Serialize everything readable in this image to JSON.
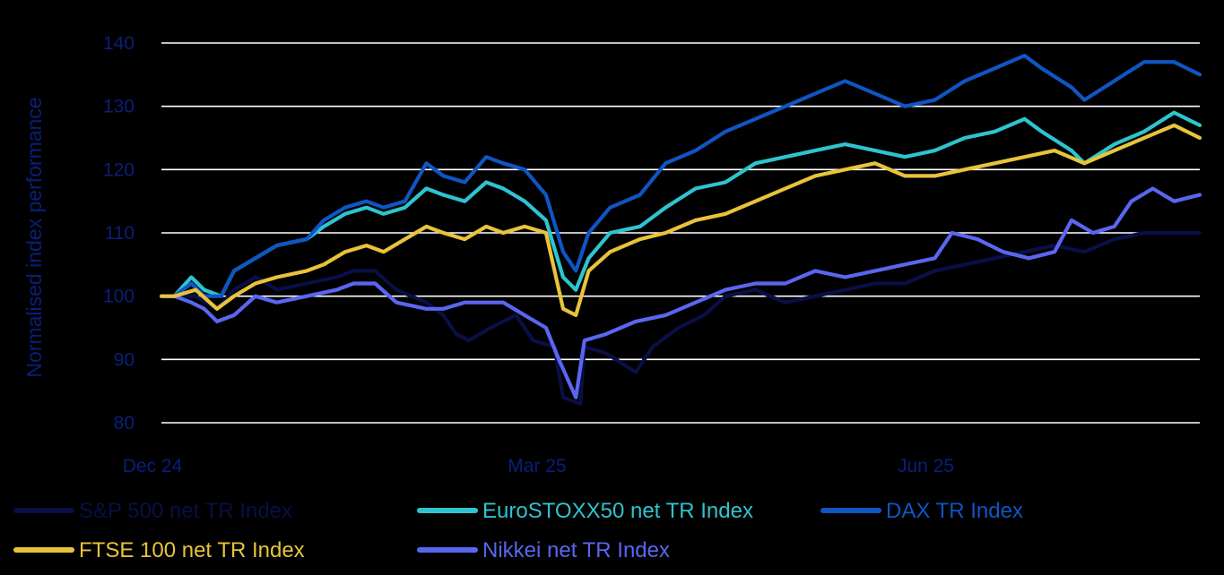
{
  "chart_data": {
    "type": "line",
    "ylabel": "Normalised index performance",
    "xlabel": "",
    "ylim": [
      80,
      140
    ],
    "yticks": [
      80,
      90,
      100,
      110,
      120,
      130,
      140
    ],
    "xlim": [
      "2024-12-31",
      "2025-08-31"
    ],
    "xticks": [
      {
        "date": "2024-12-31",
        "label": "Dec 24"
      },
      {
        "date": "2025-03-31",
        "label": "Mar 25"
      },
      {
        "date": "2025-06-30",
        "label": "Jun 25"
      }
    ],
    "grid": true,
    "legend_position": "bottom",
    "series": [
      {
        "name": "S&P 500 net TR Index",
        "color": "#0a0f45",
        "points": [
          [
            "2024-12-31",
            100
          ],
          [
            "2025-01-03",
            100
          ],
          [
            "2025-01-08",
            100
          ],
          [
            "2025-01-13",
            98
          ],
          [
            "2025-01-17",
            101
          ],
          [
            "2025-01-22",
            103
          ],
          [
            "2025-01-27",
            101
          ],
          [
            "2025-02-03",
            102
          ],
          [
            "2025-02-10",
            103
          ],
          [
            "2025-02-14",
            104
          ],
          [
            "2025-02-19",
            104
          ],
          [
            "2025-02-24",
            101
          ],
          [
            "2025-03-03",
            99
          ],
          [
            "2025-03-07",
            97
          ],
          [
            "2025-03-10",
            94
          ],
          [
            "2025-03-13",
            93
          ],
          [
            "2025-03-18",
            95
          ],
          [
            "2025-03-24",
            97
          ],
          [
            "2025-03-28",
            93
          ],
          [
            "2025-04-02",
            92
          ],
          [
            "2025-04-04",
            84
          ],
          [
            "2025-04-08",
            83
          ],
          [
            "2025-04-09",
            92
          ],
          [
            "2025-04-14",
            91
          ],
          [
            "2025-04-21",
            88
          ],
          [
            "2025-04-25",
            92
          ],
          [
            "2025-05-01",
            95
          ],
          [
            "2025-05-07",
            97
          ],
          [
            "2025-05-12",
            100
          ],
          [
            "2025-05-19",
            101
          ],
          [
            "2025-05-26",
            99
          ],
          [
            "2025-06-02",
            100
          ],
          [
            "2025-06-09",
            101
          ],
          [
            "2025-06-16",
            102
          ],
          [
            "2025-06-23",
            102
          ],
          [
            "2025-06-30",
            104
          ],
          [
            "2025-07-07",
            105
          ],
          [
            "2025-07-14",
            106
          ],
          [
            "2025-07-21",
            107
          ],
          [
            "2025-07-28",
            108
          ],
          [
            "2025-08-04",
            107
          ],
          [
            "2025-08-11",
            109
          ],
          [
            "2025-08-18",
            110
          ],
          [
            "2025-08-25",
            110
          ],
          [
            "2025-08-31",
            110
          ]
        ]
      },
      {
        "name": "EuroSTOXX50 net TR Index",
        "color": "#2ec4cf",
        "points": [
          [
            "2024-12-31",
            100
          ],
          [
            "2025-01-03",
            100
          ],
          [
            "2025-01-07",
            103
          ],
          [
            "2025-01-10",
            101
          ],
          [
            "2025-01-14",
            100
          ],
          [
            "2025-01-17",
            104
          ],
          [
            "2025-01-22",
            106
          ],
          [
            "2025-01-27",
            108
          ],
          [
            "2025-02-03",
            109
          ],
          [
            "2025-02-07",
            111
          ],
          [
            "2025-02-12",
            113
          ],
          [
            "2025-02-17",
            114
          ],
          [
            "2025-02-21",
            113
          ],
          [
            "2025-02-26",
            114
          ],
          [
            "2025-03-03",
            117
          ],
          [
            "2025-03-07",
            116
          ],
          [
            "2025-03-12",
            115
          ],
          [
            "2025-03-17",
            118
          ],
          [
            "2025-03-21",
            117
          ],
          [
            "2025-03-26",
            115
          ],
          [
            "2025-03-31",
            112
          ],
          [
            "2025-04-04",
            103
          ],
          [
            "2025-04-07",
            101
          ],
          [
            "2025-04-10",
            106
          ],
          [
            "2025-04-15",
            110
          ],
          [
            "2025-04-22",
            111
          ],
          [
            "2025-04-28",
            114
          ],
          [
            "2025-05-05",
            117
          ],
          [
            "2025-05-12",
            118
          ],
          [
            "2025-05-19",
            121
          ],
          [
            "2025-05-26",
            122
          ],
          [
            "2025-06-02",
            123
          ],
          [
            "2025-06-09",
            124
          ],
          [
            "2025-06-16",
            123
          ],
          [
            "2025-06-23",
            122
          ],
          [
            "2025-06-30",
            123
          ],
          [
            "2025-07-07",
            125
          ],
          [
            "2025-07-14",
            126
          ],
          [
            "2025-07-21",
            128
          ],
          [
            "2025-07-25",
            126
          ],
          [
            "2025-08-01",
            123
          ],
          [
            "2025-08-04",
            121
          ],
          [
            "2025-08-11",
            124
          ],
          [
            "2025-08-18",
            126
          ],
          [
            "2025-08-25",
            129
          ],
          [
            "2025-08-31",
            127
          ]
        ]
      },
      {
        "name": "DAX TR Index",
        "color": "#0f55c4",
        "points": [
          [
            "2024-12-31",
            100
          ],
          [
            "2025-01-03",
            100
          ],
          [
            "2025-01-07",
            102
          ],
          [
            "2025-01-10",
            100
          ],
          [
            "2025-01-14",
            100
          ],
          [
            "2025-01-17",
            104
          ],
          [
            "2025-01-22",
            106
          ],
          [
            "2025-01-27",
            108
          ],
          [
            "2025-02-03",
            109
          ],
          [
            "2025-02-07",
            112
          ],
          [
            "2025-02-12",
            114
          ],
          [
            "2025-02-17",
            115
          ],
          [
            "2025-02-21",
            114
          ],
          [
            "2025-02-26",
            115
          ],
          [
            "2025-03-03",
            121
          ],
          [
            "2025-03-07",
            119
          ],
          [
            "2025-03-12",
            118
          ],
          [
            "2025-03-17",
            122
          ],
          [
            "2025-03-21",
            121
          ],
          [
            "2025-03-26",
            120
          ],
          [
            "2025-03-31",
            116
          ],
          [
            "2025-04-04",
            107
          ],
          [
            "2025-04-07",
            104
          ],
          [
            "2025-04-10",
            110
          ],
          [
            "2025-04-15",
            114
          ],
          [
            "2025-04-22",
            116
          ],
          [
            "2025-04-28",
            121
          ],
          [
            "2025-05-05",
            123
          ],
          [
            "2025-05-12",
            126
          ],
          [
            "2025-05-19",
            128
          ],
          [
            "2025-05-26",
            130
          ],
          [
            "2025-06-02",
            132
          ],
          [
            "2025-06-09",
            134
          ],
          [
            "2025-06-16",
            132
          ],
          [
            "2025-06-23",
            130
          ],
          [
            "2025-06-30",
            131
          ],
          [
            "2025-07-07",
            134
          ],
          [
            "2025-07-14",
            136
          ],
          [
            "2025-07-21",
            138
          ],
          [
            "2025-07-25",
            136
          ],
          [
            "2025-08-01",
            133
          ],
          [
            "2025-08-04",
            131
          ],
          [
            "2025-08-11",
            134
          ],
          [
            "2025-08-18",
            137
          ],
          [
            "2025-08-25",
            137
          ],
          [
            "2025-08-31",
            135
          ]
        ]
      },
      {
        "name": "FTSE 100 net TR Index",
        "color": "#e8c33b",
        "points": [
          [
            "2024-12-31",
            100
          ],
          [
            "2025-01-03",
            100
          ],
          [
            "2025-01-08",
            101
          ],
          [
            "2025-01-13",
            98
          ],
          [
            "2025-01-17",
            100
          ],
          [
            "2025-01-22",
            102
          ],
          [
            "2025-01-27",
            103
          ],
          [
            "2025-02-03",
            104
          ],
          [
            "2025-02-07",
            105
          ],
          [
            "2025-02-12",
            107
          ],
          [
            "2025-02-17",
            108
          ],
          [
            "2025-02-21",
            107
          ],
          [
            "2025-02-26",
            109
          ],
          [
            "2025-03-03",
            111
          ],
          [
            "2025-03-07",
            110
          ],
          [
            "2025-03-12",
            109
          ],
          [
            "2025-03-17",
            111
          ],
          [
            "2025-03-21",
            110
          ],
          [
            "2025-03-26",
            111
          ],
          [
            "2025-03-31",
            110
          ],
          [
            "2025-04-04",
            98
          ],
          [
            "2025-04-07",
            97
          ],
          [
            "2025-04-10",
            104
          ],
          [
            "2025-04-15",
            107
          ],
          [
            "2025-04-22",
            109
          ],
          [
            "2025-04-28",
            110
          ],
          [
            "2025-05-05",
            112
          ],
          [
            "2025-05-12",
            113
          ],
          [
            "2025-05-19",
            115
          ],
          [
            "2025-05-26",
            117
          ],
          [
            "2025-06-02",
            119
          ],
          [
            "2025-06-09",
            120
          ],
          [
            "2025-06-16",
            121
          ],
          [
            "2025-06-23",
            119
          ],
          [
            "2025-06-30",
            119
          ],
          [
            "2025-07-07",
            120
          ],
          [
            "2025-07-14",
            121
          ],
          [
            "2025-07-21",
            122
          ],
          [
            "2025-07-28",
            123
          ],
          [
            "2025-08-04",
            121
          ],
          [
            "2025-08-11",
            123
          ],
          [
            "2025-08-18",
            125
          ],
          [
            "2025-08-25",
            127
          ],
          [
            "2025-08-31",
            125
          ]
        ]
      },
      {
        "name": "Nikkei net TR Index",
        "color": "#5a66f0",
        "points": [
          [
            "2024-12-31",
            100
          ],
          [
            "2025-01-03",
            100
          ],
          [
            "2025-01-07",
            99
          ],
          [
            "2025-01-10",
            98
          ],
          [
            "2025-01-13",
            96
          ],
          [
            "2025-01-17",
            97
          ],
          [
            "2025-01-22",
            100
          ],
          [
            "2025-01-27",
            99
          ],
          [
            "2025-02-03",
            100
          ],
          [
            "2025-02-10",
            101
          ],
          [
            "2025-02-14",
            102
          ],
          [
            "2025-02-19",
            102
          ],
          [
            "2025-02-24",
            99
          ],
          [
            "2025-03-03",
            98
          ],
          [
            "2025-03-07",
            98
          ],
          [
            "2025-03-12",
            99
          ],
          [
            "2025-03-17",
            99
          ],
          [
            "2025-03-21",
            99
          ],
          [
            "2025-03-26",
            97
          ],
          [
            "2025-03-31",
            95
          ],
          [
            "2025-04-03",
            90
          ],
          [
            "2025-04-07",
            84
          ],
          [
            "2025-04-09",
            93
          ],
          [
            "2025-04-14",
            94
          ],
          [
            "2025-04-21",
            96
          ],
          [
            "2025-04-28",
            97
          ],
          [
            "2025-05-05",
            99
          ],
          [
            "2025-05-12",
            101
          ],
          [
            "2025-05-19",
            102
          ],
          [
            "2025-05-26",
            102
          ],
          [
            "2025-06-02",
            104
          ],
          [
            "2025-06-09",
            103
          ],
          [
            "2025-06-16",
            104
          ],
          [
            "2025-06-23",
            105
          ],
          [
            "2025-06-30",
            106
          ],
          [
            "2025-07-04",
            110
          ],
          [
            "2025-07-10",
            109
          ],
          [
            "2025-07-16",
            107
          ],
          [
            "2025-07-22",
            106
          ],
          [
            "2025-07-28",
            107
          ],
          [
            "2025-08-01",
            112
          ],
          [
            "2025-08-06",
            110
          ],
          [
            "2025-08-11",
            111
          ],
          [
            "2025-08-15",
            115
          ],
          [
            "2025-08-20",
            117
          ],
          [
            "2025-08-25",
            115
          ],
          [
            "2025-08-31",
            116
          ]
        ]
      }
    ]
  }
}
